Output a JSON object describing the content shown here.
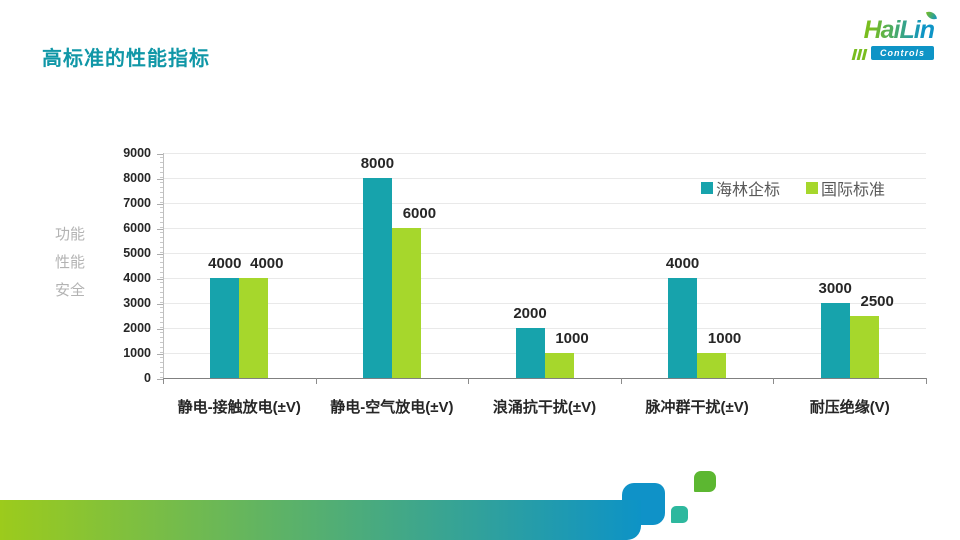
{
  "slide": {
    "title": "高标准的性能指标",
    "title_color": "#1097A7"
  },
  "logo": {
    "word": "HaiLin",
    "sub": "Controls",
    "green": "#79BD1F",
    "teal": "#0E94C6"
  },
  "chart_data": {
    "type": "bar",
    "title": "",
    "categories": [
      "静电-接触放电(±V)",
      "静电-空气放电(±V)",
      "浪涌抗干扰(±V)",
      "脉冲群干扰(±V)",
      "耐压绝缘(V)"
    ],
    "series": [
      {
        "name": "海林企标",
        "color": "#17A3AC",
        "values": [
          4000,
          8000,
          2000,
          4000,
          3000
        ]
      },
      {
        "name": "国际标准",
        "color": "#A6D72C",
        "values": [
          4000,
          6000,
          1000,
          1000,
          2500
        ]
      }
    ],
    "ylabel_lines": [
      "功能",
      "性能",
      "安全"
    ],
    "ylim": [
      0,
      9000
    ],
    "ytick_step": 1000,
    "grid": true,
    "legend_position": "top-right",
    "data_labels": true
  },
  "footer_deco": {
    "gradient_left": "#9CCB1C",
    "gradient_right": "#0D93C6",
    "square_big": "#0F92C8",
    "square_teal": "#2EB89E",
    "square_green": "#5CB731"
  }
}
